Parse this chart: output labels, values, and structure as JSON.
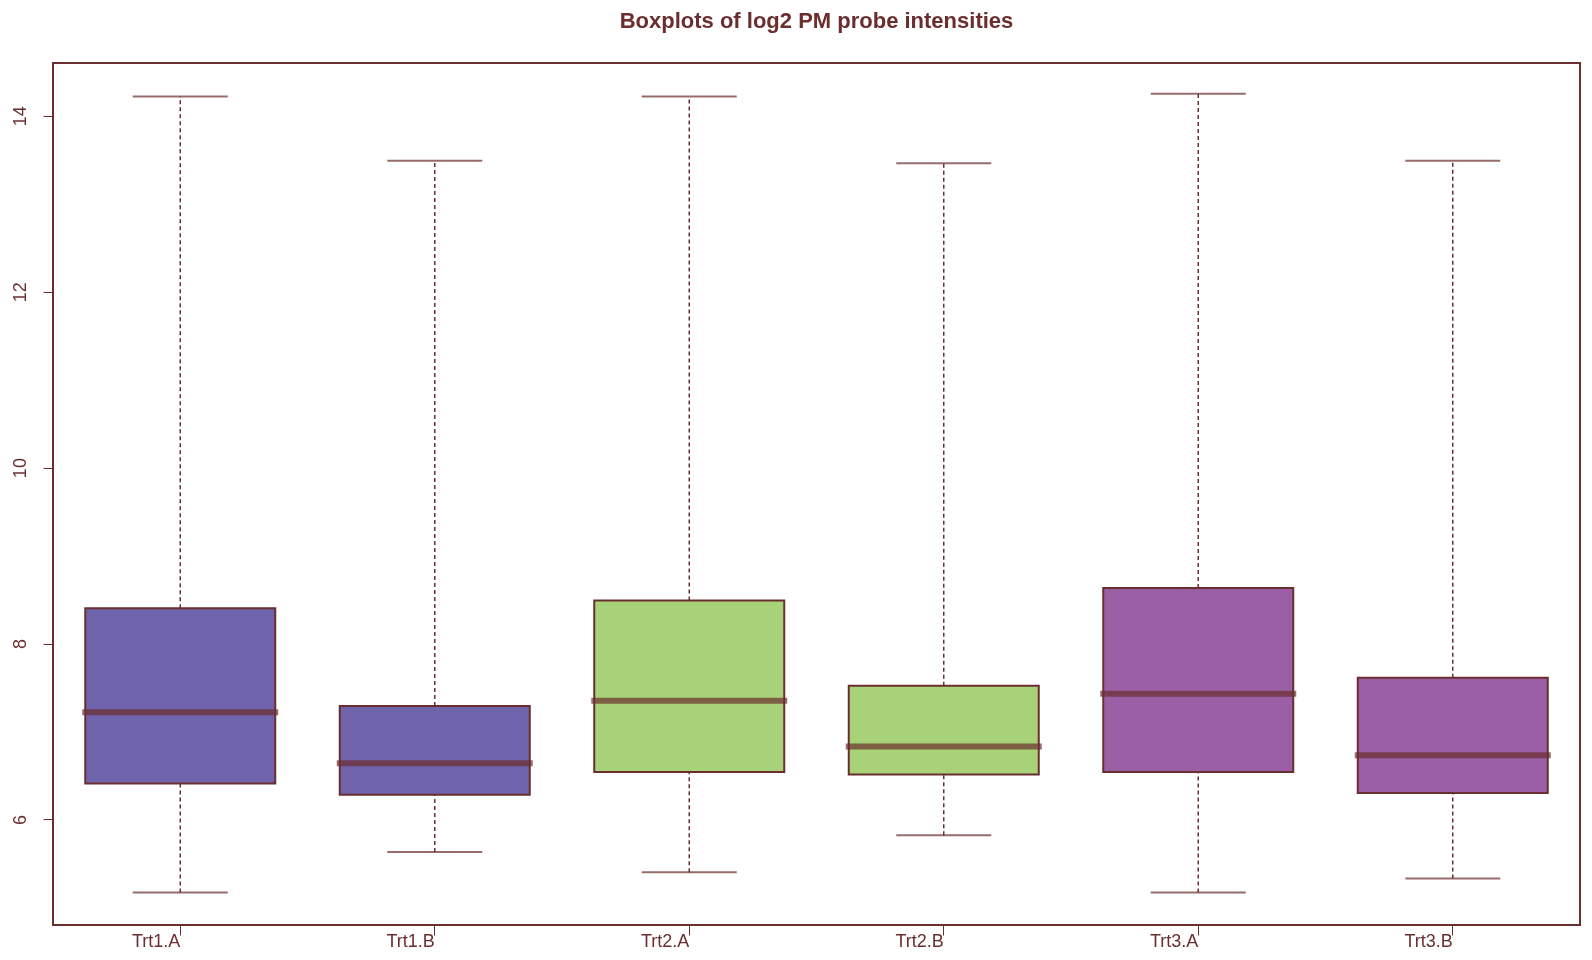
{
  "chart_data": {
    "type": "box",
    "title": "Boxplots of log2 PM probe intensities",
    "categories": [
      "Trt1.A",
      "Trt1.B",
      "Trt2.A",
      "Trt2.B",
      "Trt3.A",
      "Trt3.B"
    ],
    "colors": [
      "#6f63ac",
      "#6f63ac",
      "#a8d277",
      "#a8d277",
      "#9b5fa6",
      "#9b5fa6"
    ],
    "boxes": [
      {
        "low": 5.17,
        "q1": 6.41,
        "median": 7.22,
        "q3": 8.4,
        "high": 14.22
      },
      {
        "low": 5.63,
        "q1": 6.28,
        "median": 6.64,
        "q3": 7.29,
        "high": 13.49
      },
      {
        "low": 5.4,
        "q1": 6.54,
        "median": 7.35,
        "q3": 8.49,
        "high": 14.22
      },
      {
        "low": 5.82,
        "q1": 6.51,
        "median": 6.83,
        "q3": 7.52,
        "high": 13.46
      },
      {
        "low": 5.17,
        "q1": 6.54,
        "median": 7.43,
        "q3": 8.63,
        "high": 14.25
      },
      {
        "low": 5.33,
        "q1": 6.3,
        "median": 6.73,
        "q3": 7.61,
        "high": 13.49
      }
    ],
    "ylim": [
      4.8,
      14.6
    ],
    "yticks": [
      6,
      8,
      10,
      12,
      14
    ],
    "grid": false,
    "line_style": "dashed"
  }
}
